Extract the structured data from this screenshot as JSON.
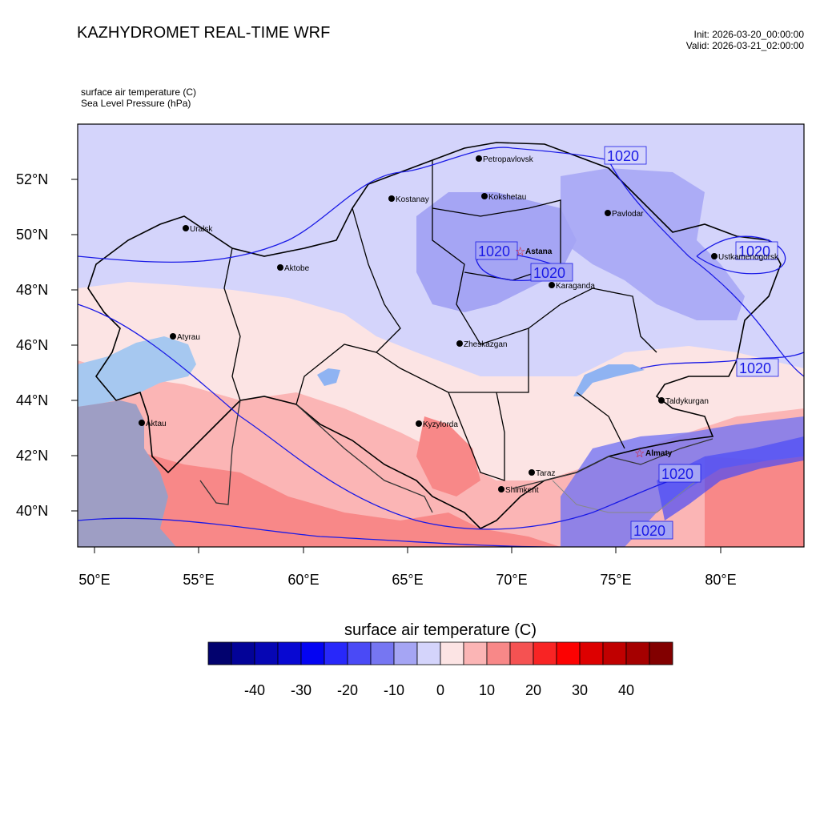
{
  "header": {
    "title": "KAZHYDROMET REAL-TIME WRF",
    "init": "Init: 2026-03-20_00:00:00",
    "valid": "Valid: 2026-03-21_02:00:00",
    "field1": "surface air temperature   (C)",
    "field2": "Sea Level Pressure   (hPa)"
  },
  "axes": {
    "lat_labels": [
      "52°N",
      "50°N",
      "48°N",
      "46°N",
      "44°N",
      "42°N",
      "40°N"
    ],
    "lon_labels": [
      "50°E",
      "55°E",
      "60°E",
      "65°E",
      "70°E",
      "75°E",
      "80°E"
    ]
  },
  "cities": [
    {
      "name": "Petropavlovsk",
      "marker": "dot"
    },
    {
      "name": "Kostanay",
      "marker": "dot"
    },
    {
      "name": "Kokshetau",
      "marker": "dot"
    },
    {
      "name": "Pavlodar",
      "marker": "dot"
    },
    {
      "name": "Uralsk",
      "marker": "dot"
    },
    {
      "name": "Aktobe",
      "marker": "dot"
    },
    {
      "name": "Astana",
      "marker": "star"
    },
    {
      "name": "Ustkamenogorsk",
      "marker": "dot"
    },
    {
      "name": "Karaganda",
      "marker": "dot"
    },
    {
      "name": "Atyrau",
      "marker": "dot"
    },
    {
      "name": "Zheskazgan",
      "marker": "dot"
    },
    {
      "name": "Taldykurgan",
      "marker": "dot"
    },
    {
      "name": "Kyzylorda",
      "marker": "dot"
    },
    {
      "name": "Aktau",
      "marker": "dot"
    },
    {
      "name": "Almaty",
      "marker": "star"
    },
    {
      "name": "Taraz",
      "marker": "dot"
    },
    {
      "name": "Shimkent",
      "marker": "dot"
    }
  ],
  "isobar_labels": [
    "1020",
    "1020",
    "1020",
    "1020",
    "1020",
    "1020",
    "1020"
  ],
  "colorbar": {
    "title": "surface air temperature  (C)",
    "tick_labels": [
      "-40",
      "-30",
      "-20",
      "-10",
      "0",
      "10",
      "20",
      "30",
      "40"
    ],
    "colors": [
      "#02026e",
      "#030398",
      "#0606b4",
      "#0808d2",
      "#0404f2",
      "#2828fa",
      "#4a4af6",
      "#7676f2",
      "#a5a5f4",
      "#d4d4fb",
      "#fce4e4",
      "#fbb5b5",
      "#f88888",
      "#f55252",
      "#f82424",
      "#fc0202",
      "#dd0000",
      "#c00000",
      "#a50000",
      "#820000"
    ]
  }
}
